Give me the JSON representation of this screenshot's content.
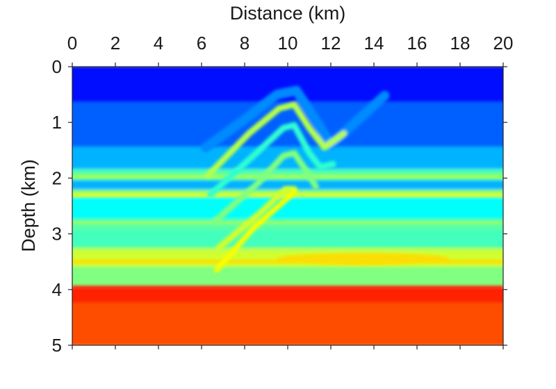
{
  "chart_data": {
    "type": "heatmap",
    "title": "",
    "xlabel": "Distance (km)",
    "ylabel": "Depth (km)",
    "xlim": [
      0,
      20
    ],
    "ylim": [
      0,
      5
    ],
    "x_axis_position": "top",
    "y_axis_inverted": true,
    "x_ticks": [
      {
        "value": 0,
        "label": "0"
      },
      {
        "value": 2,
        "label": "2"
      },
      {
        "value": 4,
        "label": "4"
      },
      {
        "value": 6,
        "label": "6"
      },
      {
        "value": 8,
        "label": "8"
      },
      {
        "value": 10,
        "label": "10"
      },
      {
        "value": 12,
        "label": "12"
      },
      {
        "value": 14,
        "label": "14"
      },
      {
        "value": 16,
        "label": "16"
      },
      {
        "value": 18,
        "label": "18"
      },
      {
        "value": 20,
        "label": "20"
      }
    ],
    "y_ticks": [
      {
        "value": 0,
        "label": "0"
      },
      {
        "value": 1,
        "label": "1"
      },
      {
        "value": 2,
        "label": "2"
      },
      {
        "value": 3,
        "label": "3"
      },
      {
        "value": 4,
        "label": "4"
      },
      {
        "value": 5,
        "label": "5"
      }
    ],
    "grid": false,
    "colorbar": false,
    "colormap": "jet",
    "colormap_stops": [
      "#00008f",
      "#0000ff",
      "#0080ff",
      "#00ffff",
      "#80ff80",
      "#ffff00",
      "#ff8000",
      "#ff0000",
      "#800000"
    ],
    "background_levels": [
      {
        "from_depth": 0.0,
        "to_depth": 0.65,
        "level": 0.14
      },
      {
        "from_depth": 0.65,
        "to_depth": 1.45,
        "level": 0.22
      },
      {
        "from_depth": 1.45,
        "to_depth": 1.85,
        "level": 0.3
      },
      {
        "from_depth": 1.85,
        "to_depth": 2.05,
        "level": 0.45
      },
      {
        "from_depth": 2.05,
        "to_depth": 2.22,
        "level": 0.3
      },
      {
        "from_depth": 2.22,
        "to_depth": 2.35,
        "level": 0.5
      },
      {
        "from_depth": 2.35,
        "to_depth": 2.75,
        "level": 0.38
      },
      {
        "from_depth": 2.75,
        "to_depth": 2.95,
        "level": 0.46
      },
      {
        "from_depth": 2.95,
        "to_depth": 3.3,
        "level": 0.44
      },
      {
        "from_depth": 3.3,
        "to_depth": 3.6,
        "level": 0.58
      },
      {
        "from_depth": 3.6,
        "to_depth": 3.97,
        "level": 0.5
      },
      {
        "from_depth": 3.97,
        "to_depth": 4.25,
        "level": 0.84
      },
      {
        "from_depth": 4.25,
        "to_depth": 5.0,
        "level": 0.8
      }
    ],
    "horizons": [
      {
        "depth": 1.97,
        "level": 0.55
      },
      {
        "depth": 2.3,
        "level": 0.6
      },
      {
        "depth": 2.8,
        "level": 0.52
      },
      {
        "depth": 3.28,
        "level": 0.56
      },
      {
        "depth": 3.5,
        "level": 0.66
      },
      {
        "depth": 3.97,
        "level": 0.86
      }
    ],
    "anticline_layers": [
      {
        "points": [
          [
            6.2,
            1.45
          ],
          [
            8.0,
            0.95
          ],
          [
            9.5,
            0.5
          ],
          [
            10.4,
            0.43
          ],
          [
            11.2,
            0.9
          ],
          [
            12.0,
            1.4
          ],
          [
            14.5,
            0.52
          ]
        ],
        "level": 0.26
      },
      {
        "points": [
          [
            6.3,
            1.95
          ],
          [
            8.2,
            1.2
          ],
          [
            9.6,
            0.75
          ],
          [
            10.3,
            0.68
          ],
          [
            11.0,
            1.1
          ],
          [
            11.7,
            1.45
          ],
          [
            12.6,
            1.2
          ]
        ],
        "level": 0.55
      },
      {
        "points": [
          [
            6.4,
            2.3
          ],
          [
            8.4,
            1.6
          ],
          [
            9.8,
            1.1
          ],
          [
            10.3,
            1.05
          ],
          [
            11.0,
            1.55
          ],
          [
            11.5,
            1.8
          ],
          [
            12.1,
            1.75
          ]
        ],
        "level": 0.42
      },
      {
        "points": [
          [
            6.6,
            2.78
          ],
          [
            8.6,
            2.1
          ],
          [
            9.8,
            1.6
          ],
          [
            10.3,
            1.55
          ],
          [
            11.0,
            1.95
          ],
          [
            11.3,
            2.15
          ]
        ],
        "level": 0.5
      },
      {
        "points": [
          [
            6.8,
            3.25
          ],
          [
            8.8,
            2.6
          ],
          [
            9.9,
            2.2
          ],
          [
            10.3,
            2.2
          ]
        ],
        "level": 0.58
      }
    ],
    "thrust_fault": {
      "points": [
        [
          6.7,
          3.65
        ],
        [
          8.4,
          2.9
        ],
        [
          10.3,
          2.25
        ]
      ],
      "level": 0.62
    },
    "high_velocity_zone": {
      "x_range": [
        9.5,
        17.5
      ],
      "depth": 3.45,
      "level": 0.66
    }
  }
}
